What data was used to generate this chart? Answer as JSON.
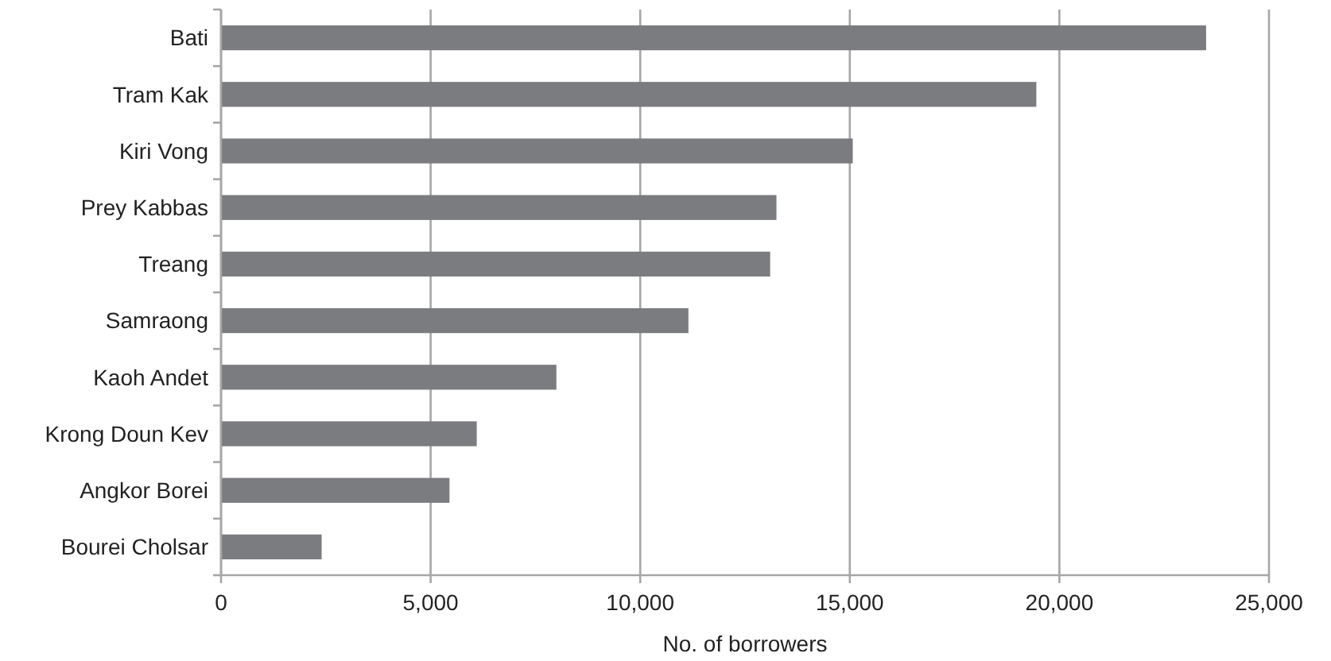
{
  "chart_data": {
    "type": "bar",
    "orientation": "horizontal",
    "xlabel": "No. of borrowers",
    "categories": [
      "Bati",
      "Tram Kak",
      "Kiri Vong",
      "Prey Kabbas",
      "Treang",
      "Samraong",
      "Kaoh Andet",
      "Krong Doun Kev",
      "Angkor Borei",
      "Bourei Cholsar"
    ],
    "values": [
      23500,
      19450,
      15070,
      13250,
      13100,
      11150,
      8000,
      6100,
      5450,
      2400
    ],
    "color": "#7b7c80",
    "xlim": [
      0,
      25000
    ],
    "xticks": [
      {
        "value": 0,
        "label": "0"
      },
      {
        "value": 5000,
        "label": "5,000"
      },
      {
        "value": 10000,
        "label": "10,000"
      },
      {
        "value": 15000,
        "label": "15,000"
      },
      {
        "value": 20000,
        "label": "20,000"
      },
      {
        "value": 25000,
        "label": "25,000"
      }
    ],
    "grid": "x"
  }
}
